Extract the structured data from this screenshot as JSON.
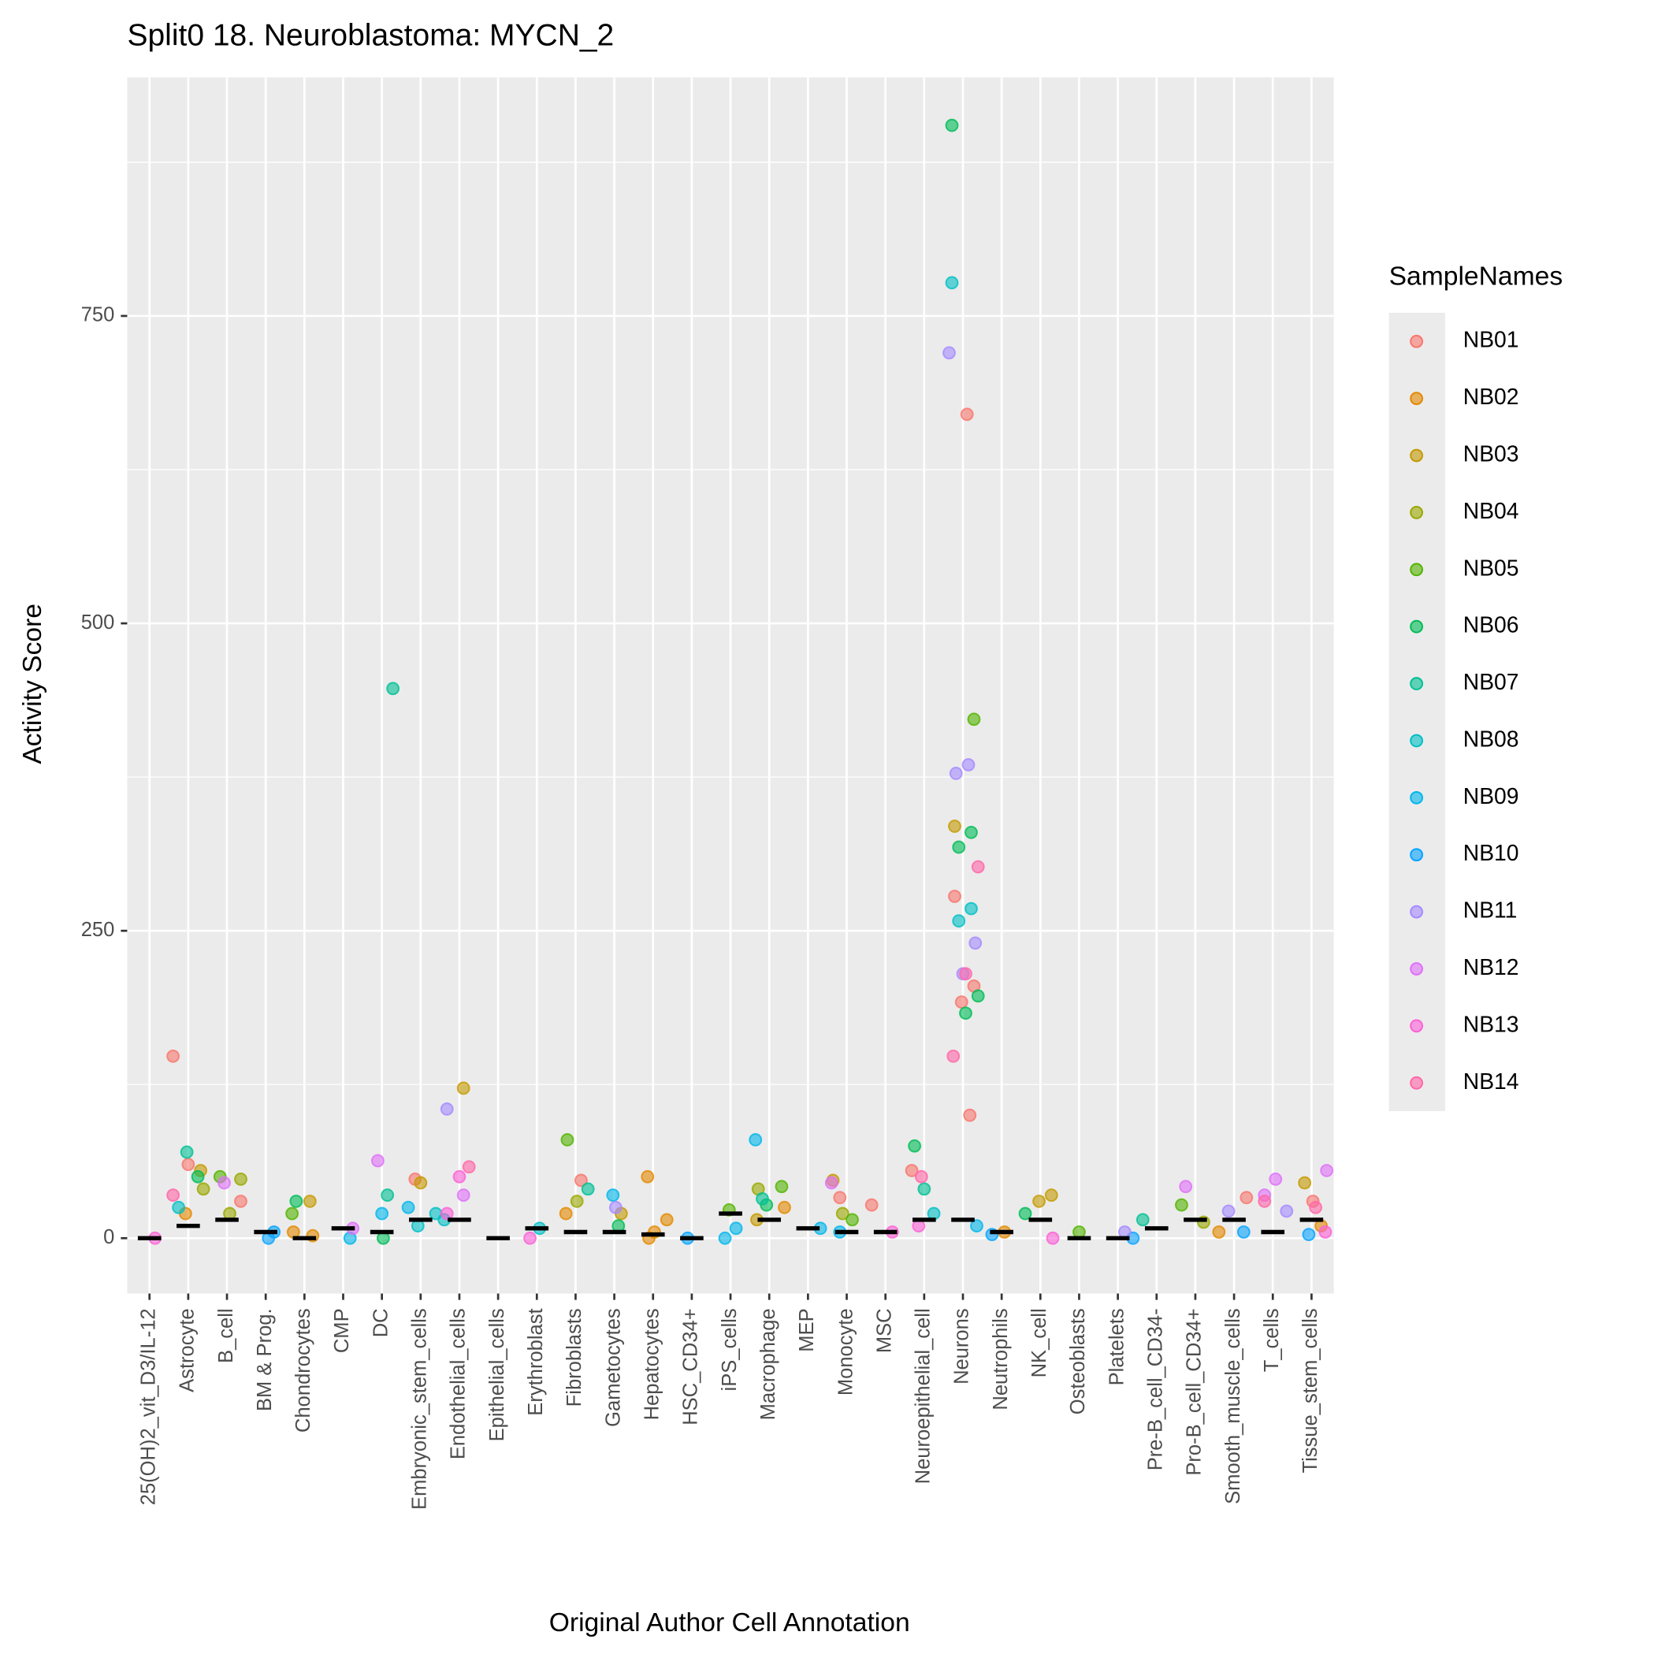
{
  "chart_data": {
    "type": "strip",
    "title": "Split0 18. Neuroblastoma: MYCN_2",
    "x_label": "Original Author Cell Annotation",
    "y_label": "Activity Score",
    "legend_title": "SampleNames",
    "legend_position": "right",
    "grid": true,
    "ylim": [
      -45,
      944
    ],
    "yticks": [
      0,
      250,
      500,
      750
    ],
    "y_minor_grid": [
      125,
      375,
      625,
      875
    ],
    "categories": [
      "25(OH)2_vit_D3/IL-12",
      "Astrocyte",
      "B_cell",
      "BM & Prog.",
      "Chondrocytes",
      "CMP",
      "DC",
      "Embryonic_stem_cells",
      "Endothelial_cells",
      "Epithelial_cells",
      "Erythroblast",
      "Fibroblasts",
      "Gametocytes",
      "Hepatocytes",
      "HSC_CD34+",
      "iPS_cells",
      "Macrophage",
      "MEP",
      "Monocyte",
      "MSC",
      "Neuroepithelial_cell",
      "Neurons",
      "Neutrophils",
      "NK_cell",
      "Osteoblasts",
      "Platelets",
      "Pre-B_cell_CD34-",
      "Pro-B_cell_CD34+",
      "Smooth_muscle_cells",
      "T_cells",
      "Tissue_stem_cells"
    ],
    "medians": [
      0,
      10,
      15,
      5,
      0,
      8,
      5,
      15,
      15,
      0,
      8,
      5,
      5,
      3,
      0,
      20,
      15,
      8,
      5,
      5,
      15,
      15,
      5,
      15,
      0,
      0,
      8,
      15,
      15,
      5,
      15
    ],
    "series": [
      {
        "name": "NB01",
        "color": "#F8766D",
        "x": [
          "Astrocyte",
          "Neurons",
          "Neurons",
          "Neurons",
          "Neurons",
          "MSC",
          "Fibroblasts",
          "Monocyte",
          "Smooth_muscle_cells",
          "Astrocyte",
          "Neuroepithelial_cell",
          "Neurons",
          "Embryonic_stem_cells",
          "B_cell",
          "Tissue_stem_cells"
        ],
        "values": [
          148,
          670,
          278,
          205,
          192,
          27,
          47,
          33,
          33,
          60,
          55,
          100,
          48,
          30,
          30
        ]
      },
      {
        "name": "NB02",
        "color": "#E38900",
        "x": [
          "Hepatocytes",
          "Hepatocytes",
          "Hepatocytes",
          "Chondrocytes",
          "Chondrocytes",
          "Hepatocytes",
          "Macrophage",
          "Neutrophils",
          "Fibroblasts",
          "Tissue_stem_cells",
          "Astrocyte",
          "Smooth_muscle_cells"
        ],
        "values": [
          50,
          15,
          5,
          5,
          2,
          0,
          25,
          5,
          20,
          10,
          20,
          5
        ]
      },
      {
        "name": "NB03",
        "color": "#C49A00",
        "x": [
          "Endothelial_cells",
          "Neurons",
          "NK_cell",
          "NK_cell",
          "Monocyte",
          "Chondrocytes",
          "Tissue_stem_cells",
          "Astrocyte",
          "Embryonic_stem_cells",
          "Macrophage",
          "Gametocytes"
        ],
        "values": [
          122,
          335,
          35,
          30,
          47,
          30,
          45,
          55,
          45,
          15,
          20
        ]
      },
      {
        "name": "NB04",
        "color": "#99A800",
        "x": [
          "B_cell",
          "Fibroblasts",
          "Macrophage",
          "Pro-B_cell_CD34+",
          "Monocyte",
          "Astrocyte",
          "B_cell"
        ],
        "values": [
          48,
          30,
          40,
          13,
          20,
          40,
          20
        ]
      },
      {
        "name": "NB05",
        "color": "#53B400",
        "x": [
          "Fibroblasts",
          "Neurons",
          "iPS_cells",
          "Pro-B_cell_CD34+",
          "Monocyte",
          "B_cell",
          "Macrophage",
          "Osteoblasts",
          "Chondrocytes"
        ],
        "values": [
          80,
          422,
          23,
          27,
          15,
          50,
          42,
          5,
          20
        ]
      },
      {
        "name": "NB06",
        "color": "#00BC56",
        "x": [
          "DC",
          "Neurons",
          "Neurons",
          "Neurons",
          "Neurons",
          "Neurons",
          "Neuroepithelial_cell",
          "Astrocyte",
          "Macrophage",
          "NK_cell",
          "Gametocytes",
          "Chondrocytes"
        ],
        "values": [
          0,
          905,
          330,
          318,
          197,
          183,
          75,
          50,
          27,
          20,
          10,
          30
        ]
      },
      {
        "name": "NB07",
        "color": "#00C094",
        "x": [
          "DC",
          "Astrocyte",
          "Pre-B_cell_CD34-",
          "DC",
          "Macrophage",
          "Fibroblasts",
          "Neuroepithelial_cell"
        ],
        "values": [
          447,
          70,
          15,
          35,
          32,
          40,
          40
        ]
      },
      {
        "name": "NB08",
        "color": "#00BFC4",
        "x": [
          "Neurons",
          "Neurons",
          "Neurons",
          "Embryonic_stem_cells",
          "Erythroblast",
          "Astrocyte",
          "Neuroepithelial_cell",
          "Embryonic_stem_cells",
          "Endothelial_cells"
        ],
        "values": [
          777,
          268,
          258,
          20,
          8,
          25,
          20,
          10,
          15
        ]
      },
      {
        "name": "NB09",
        "color": "#00B6EB",
        "x": [
          "Gametocytes",
          "Macrophage",
          "iPS_cells",
          "Monocyte",
          "MEP",
          "DC",
          "Embryonic_stem_cells",
          "CMP",
          "iPS_cells",
          "Neurons"
        ],
        "values": [
          35,
          80,
          8,
          5,
          8,
          20,
          25,
          0,
          0,
          10
        ]
      },
      {
        "name": "NB10",
        "color": "#06A4FF",
        "x": [
          "BM & Prog.",
          "HSC_CD34+",
          "Platelets",
          "BM & Prog.",
          "Neutrophils",
          "Smooth_muscle_cells",
          "Tissue_stem_cells"
        ],
        "values": [
          5,
          0,
          0,
          0,
          3,
          5,
          3
        ]
      },
      {
        "name": "NB11",
        "color": "#A58AFF",
        "x": [
          "Neurons",
          "Neurons",
          "Neurons",
          "Neurons",
          "Neurons",
          "Endothelial_cells",
          "Platelets",
          "Smooth_muscle_cells",
          "T_cells",
          "Gametocytes"
        ],
        "values": [
          720,
          385,
          378,
          240,
          215,
          105,
          5,
          22,
          22,
          25
        ]
      },
      {
        "name": "NB12",
        "color": "#DF70F8",
        "x": [
          "DC",
          "Tissue_stem_cells",
          "T_cells",
          "Pro-B_cell_CD34+",
          "CMP",
          "B_cell",
          "Monocyte",
          "Endothelial_cells",
          "T_cells"
        ],
        "values": [
          63,
          55,
          48,
          42,
          8,
          45,
          45,
          35,
          35
        ]
      },
      {
        "name": "NB13",
        "color": "#FB61D7",
        "x": [
          "25(OH)2_vit_D3/IL-12",
          "Erythroblast",
          "NK_cell",
          "Endothelial_cells",
          "Endothelial_cells",
          "MSC",
          "Neuroepithelial_cell",
          "Tissue_stem_cells"
        ],
        "values": [
          0,
          0,
          0,
          50,
          20,
          5,
          10,
          5
        ]
      },
      {
        "name": "NB14",
        "color": "#FF66A8",
        "x": [
          "Neurons",
          "Neurons",
          "Neurons",
          "Endothelial_cells",
          "Neuroepithelial_cell",
          "Astrocyte",
          "Tissue_stem_cells",
          "T_cells"
        ],
        "values": [
          302,
          215,
          148,
          58,
          50,
          35,
          25,
          30
        ]
      }
    ]
  }
}
